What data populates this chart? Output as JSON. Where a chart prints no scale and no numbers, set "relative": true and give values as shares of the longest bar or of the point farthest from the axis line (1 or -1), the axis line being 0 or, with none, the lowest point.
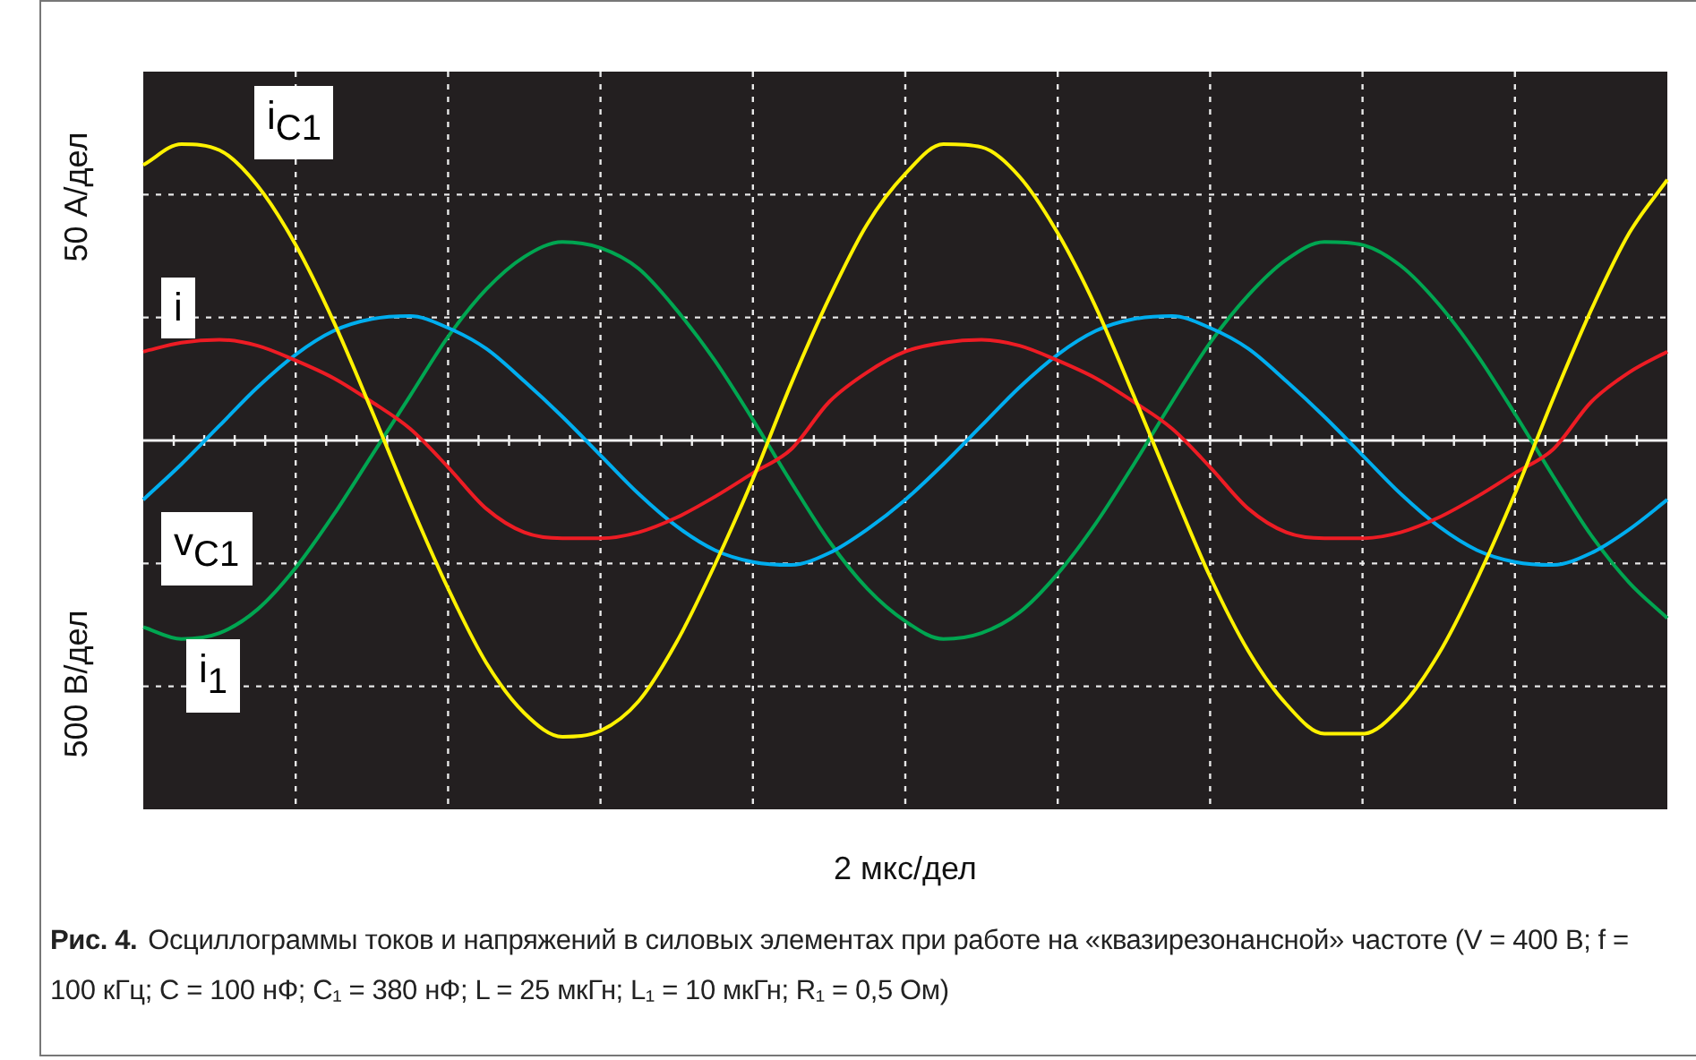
{
  "chart_data": {
    "type": "line",
    "relative": true,
    "grid": true,
    "line_style": "solid",
    "xlabel": "2 мкс/дел",
    "ylabel": "50 А/дел",
    "y2label": "500 В/дел",
    "annotations": [
      "Рис. 4.",
      "Осциллограммы токов и напряжений в силовых элементах при работе на «квазирезонансной» частоте (V = 400 В; f = 100 кГц; C = 100 нФ; C₁ = 380 нФ; L = 25 мкГн; L₁ = 10 мкГн; R₁ = 0,5 Ом)"
    ],
    "categories": [
      null,
      null,
      null,
      null,
      null,
      null,
      null,
      null,
      null,
      null,
      null,
      null,
      null,
      null,
      null,
      null,
      null,
      null,
      null,
      null,
      null,
      null,
      null,
      null,
      null,
      null,
      null,
      null,
      null,
      null,
      null,
      null,
      null,
      null,
      null,
      null,
      null,
      null,
      null,
      null,
      null
    ],
    "series": [
      {
        "name": "i$_{C1}$",
        "color": "#fff200",
        "values": [
          0.93,
          1.0,
          0.98,
          0.86,
          0.66,
          0.4,
          0.1,
          -0.21,
          -0.5,
          -0.75,
          -0.92,
          -1.0,
          -0.98,
          -0.88,
          -0.68,
          -0.42,
          -0.13,
          0.19,
          0.48,
          0.73,
          0.9,
          1.0,
          0.99,
          0.89,
          0.7,
          0.45,
          0.15,
          -0.16,
          -0.46,
          -0.71,
          -0.89,
          -0.99,
          -0.99,
          -0.9,
          -0.72,
          -0.47,
          -0.18,
          0.14,
          0.44,
          0.7,
          0.88
        ]
      },
      {
        "name": "i",
        "color": "#ed1c24",
        "values": [
          0.3,
          0.33,
          0.34,
          0.32,
          0.27,
          0.21,
          0.13,
          0.04,
          -0.09,
          -0.23,
          -0.31,
          -0.33,
          -0.33,
          -0.31,
          -0.26,
          -0.19,
          -0.11,
          -0.03,
          0.13,
          0.23,
          0.3,
          0.33,
          0.34,
          0.32,
          0.27,
          0.21,
          0.13,
          0.04,
          -0.09,
          -0.23,
          -0.31,
          -0.33,
          -0.33,
          -0.31,
          -0.26,
          -0.19,
          -0.11,
          -0.03,
          0.13,
          0.23,
          0.3
        ]
      },
      {
        "name": "v$_{C1}$",
        "color": "#00aeef",
        "values": [
          -0.2,
          -0.08,
          0.05,
          0.18,
          0.29,
          0.37,
          0.41,
          0.42,
          0.38,
          0.31,
          0.2,
          0.08,
          -0.05,
          -0.18,
          -0.29,
          -0.37,
          -0.41,
          -0.42,
          -0.38,
          -0.3,
          -0.2,
          -0.08,
          0.05,
          0.18,
          0.29,
          0.37,
          0.41,
          0.42,
          0.38,
          0.31,
          0.2,
          0.08,
          -0.05,
          -0.18,
          -0.29,
          -0.37,
          -0.41,
          -0.42,
          -0.38,
          -0.3,
          -0.2
        ]
      },
      {
        "name": "i$_{1}$",
        "color": "#00a651",
        "values": [
          -0.63,
          -0.67,
          -0.65,
          -0.57,
          -0.43,
          -0.25,
          -0.05,
          0.15,
          0.35,
          0.51,
          0.62,
          0.67,
          0.65,
          0.58,
          0.44,
          0.27,
          0.07,
          -0.14,
          -0.34,
          -0.5,
          -0.61,
          -0.67,
          -0.65,
          -0.58,
          -0.45,
          -0.28,
          -0.08,
          0.13,
          0.33,
          0.49,
          0.61,
          0.67,
          0.66,
          0.59,
          0.46,
          0.29,
          0.09,
          -0.12,
          -0.32,
          -0.48,
          -0.6
        ]
      }
    ]
  }
}
